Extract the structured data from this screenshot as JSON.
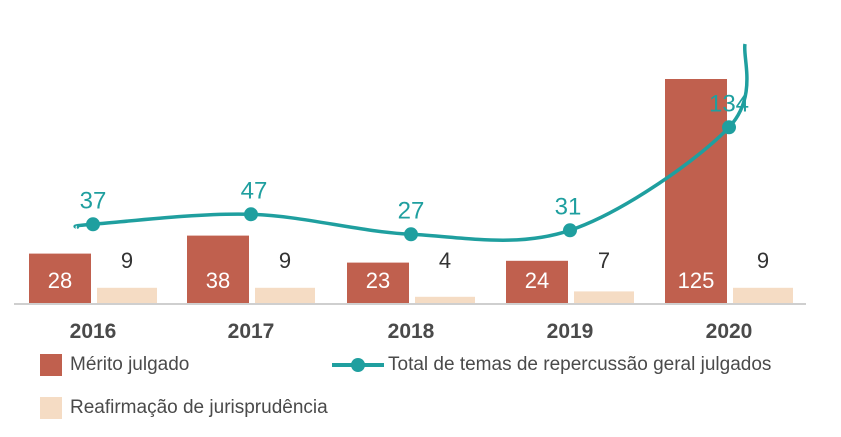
{
  "chart_data": {
    "type": "bar",
    "categories": [
      "2016",
      "2017",
      "2018",
      "2019",
      "2020"
    ],
    "series": [
      {
        "name": "Mérito julgado",
        "kind": "bar",
        "values": [
          28,
          38,
          23,
          24,
          125
        ],
        "color": "#c0604e"
      },
      {
        "name": "Reafirmação de jurisprudência",
        "kind": "bar",
        "values": [
          9,
          9,
          4,
          7,
          9
        ],
        "color": "#f5dcc4"
      },
      {
        "name": "Total de temas de repercussão geral julgados",
        "kind": "line",
        "values": [
          37,
          47,
          27,
          31,
          134
        ],
        "color": "#1f9f9f"
      }
    ],
    "title": "",
    "xlabel": "",
    "ylabel": "",
    "grid": false,
    "legend_position": "bottom"
  }
}
